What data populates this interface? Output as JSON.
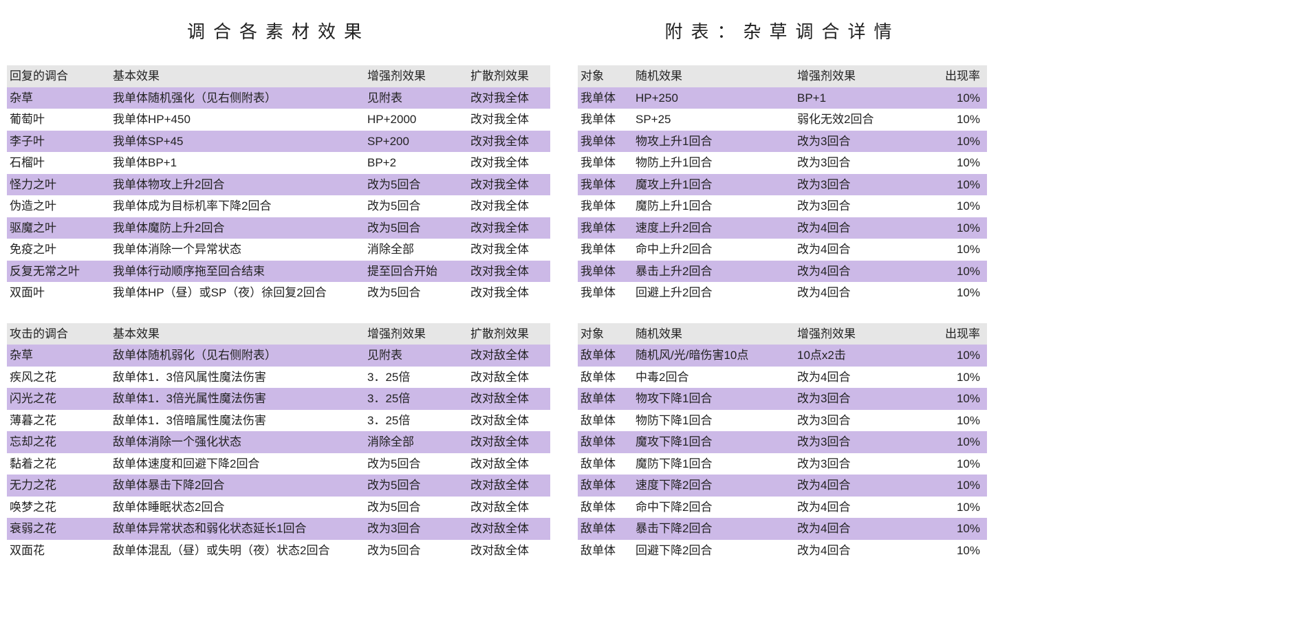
{
  "colors": {
    "header_bg": "#e6e6e6",
    "stripe_bg": "#ccb9e7",
    "text": "#222222",
    "background": "#ffffff"
  },
  "left_title": "调合各素材效果",
  "right_title": "附表：杂草调合详情",
  "left_tables": [
    {
      "columns": [
        "回复的调合",
        "基本效果",
        "增强剂效果",
        "扩散剂效果"
      ],
      "col_widths": [
        "150px",
        "370px",
        "150px",
        "120px"
      ],
      "rows": [
        [
          "杂草",
          "我单体随机强化（见右侧附表）",
          "见附表",
          "改对我全体"
        ],
        [
          "葡萄叶",
          "我单体HP+450",
          "HP+2000",
          "改对我全体"
        ],
        [
          "李子叶",
          "我单体SP+45",
          "SP+200",
          "改对我全体"
        ],
        [
          "石榴叶",
          "我单体BP+1",
          "BP+2",
          "改对我全体"
        ],
        [
          "怪力之叶",
          "我单体物攻上升2回合",
          "改为5回合",
          "改对我全体"
        ],
        [
          "伪造之叶",
          "我单体成为目标机率下降2回合",
          "改为5回合",
          "改对我全体"
        ],
        [
          "驱魔之叶",
          "我单体魔防上升2回合",
          "改为5回合",
          "改对我全体"
        ],
        [
          "免疫之叶",
          "我单体消除一个异常状态",
          "消除全部",
          "改对我全体"
        ],
        [
          "反复无常之叶",
          "我单体行动顺序拖至回合结束",
          "提至回合开始",
          "改对我全体"
        ],
        [
          "双面叶",
          "我单体HP（昼）或SP（夜）徐回复2回合",
          "改为5回合",
          "改对我全体"
        ]
      ]
    },
    {
      "columns": [
        "攻击的调合",
        "基本效果",
        "增强剂效果",
        "扩散剂效果"
      ],
      "col_widths": [
        "150px",
        "370px",
        "150px",
        "120px"
      ],
      "rows": [
        [
          "杂草",
          "敌单体随机弱化（见右侧附表）",
          "见附表",
          "改对敌全体"
        ],
        [
          "疾风之花",
          "敌单体1．3倍风属性魔法伤害",
          "3．25倍",
          "改对敌全体"
        ],
        [
          "闪光之花",
          "敌单体1．3倍光属性魔法伤害",
          "3．25倍",
          "改对敌全体"
        ],
        [
          "薄暮之花",
          "敌单体1．3倍暗属性魔法伤害",
          "3．25倍",
          "改对敌全体"
        ],
        [
          "忘却之花",
          "敌单体消除一个强化状态",
          "消除全部",
          "改对敌全体"
        ],
        [
          "黏着之花",
          "敌单体速度和回避下降2回合",
          "改为5回合",
          "改对敌全体"
        ],
        [
          "无力之花",
          "敌单体暴击下降2回合",
          "改为5回合",
          "改对敌全体"
        ],
        [
          "唤梦之花",
          "敌单体睡眠状态2回合",
          "改为5回合",
          "改对敌全体"
        ],
        [
          "衰弱之花",
          "敌单体异常状态和弱化状态延长1回合",
          "改为3回合",
          "改对敌全体"
        ],
        [
          "双面花",
          "敌单体混乱（昼）或失明（夜）状态2回合",
          "改为5回合",
          "改对敌全体"
        ]
      ]
    }
  ],
  "right_tables": [
    {
      "columns": [
        "对象",
        "随机效果",
        "增强剂效果",
        "出现率"
      ],
      "col_widths": [
        "80px",
        "235px",
        "190px",
        "90px"
      ],
      "rate_col": 3,
      "rows": [
        [
          "我单体",
          "HP+250",
          "BP+1",
          "10%"
        ],
        [
          "我单体",
          "SP+25",
          "弱化无效2回合",
          "10%"
        ],
        [
          "我单体",
          "物攻上升1回合",
          "改为3回合",
          "10%"
        ],
        [
          "我单体",
          "物防上升1回合",
          "改为3回合",
          "10%"
        ],
        [
          "我单体",
          "魔攻上升1回合",
          "改为3回合",
          "10%"
        ],
        [
          "我单体",
          "魔防上升1回合",
          "改为3回合",
          "10%"
        ],
        [
          "我单体",
          "速度上升2回合",
          "改为4回合",
          "10%"
        ],
        [
          "我单体",
          "命中上升2回合",
          "改为4回合",
          "10%"
        ],
        [
          "我单体",
          "暴击上升2回合",
          "改为4回合",
          "10%"
        ],
        [
          "我单体",
          "回避上升2回合",
          "改为4回合",
          "10%"
        ]
      ]
    },
    {
      "columns": [
        "对象",
        "随机效果",
        "增强剂效果",
        "出现率"
      ],
      "col_widths": [
        "80px",
        "235px",
        "190px",
        "90px"
      ],
      "rate_col": 3,
      "rows": [
        [
          "敌单体",
          "随机风/光/暗伤害10点",
          "10点x2击",
          "10%"
        ],
        [
          "敌单体",
          "中毒2回合",
          "改为4回合",
          "10%"
        ],
        [
          "敌单体",
          "物攻下降1回合",
          "改为3回合",
          "10%"
        ],
        [
          "敌单体",
          "物防下降1回合",
          "改为3回合",
          "10%"
        ],
        [
          "敌单体",
          "魔攻下降1回合",
          "改为3回合",
          "10%"
        ],
        [
          "敌单体",
          "魔防下降1回合",
          "改为3回合",
          "10%"
        ],
        [
          "敌单体",
          "速度下降2回合",
          "改为4回合",
          "10%"
        ],
        [
          "敌单体",
          "命中下降2回合",
          "改为4回合",
          "10%"
        ],
        [
          "敌单体",
          "暴击下降2回合",
          "改为4回合",
          "10%"
        ],
        [
          "敌单体",
          "回避下降2回合",
          "改为4回合",
          "10%"
        ]
      ]
    }
  ]
}
